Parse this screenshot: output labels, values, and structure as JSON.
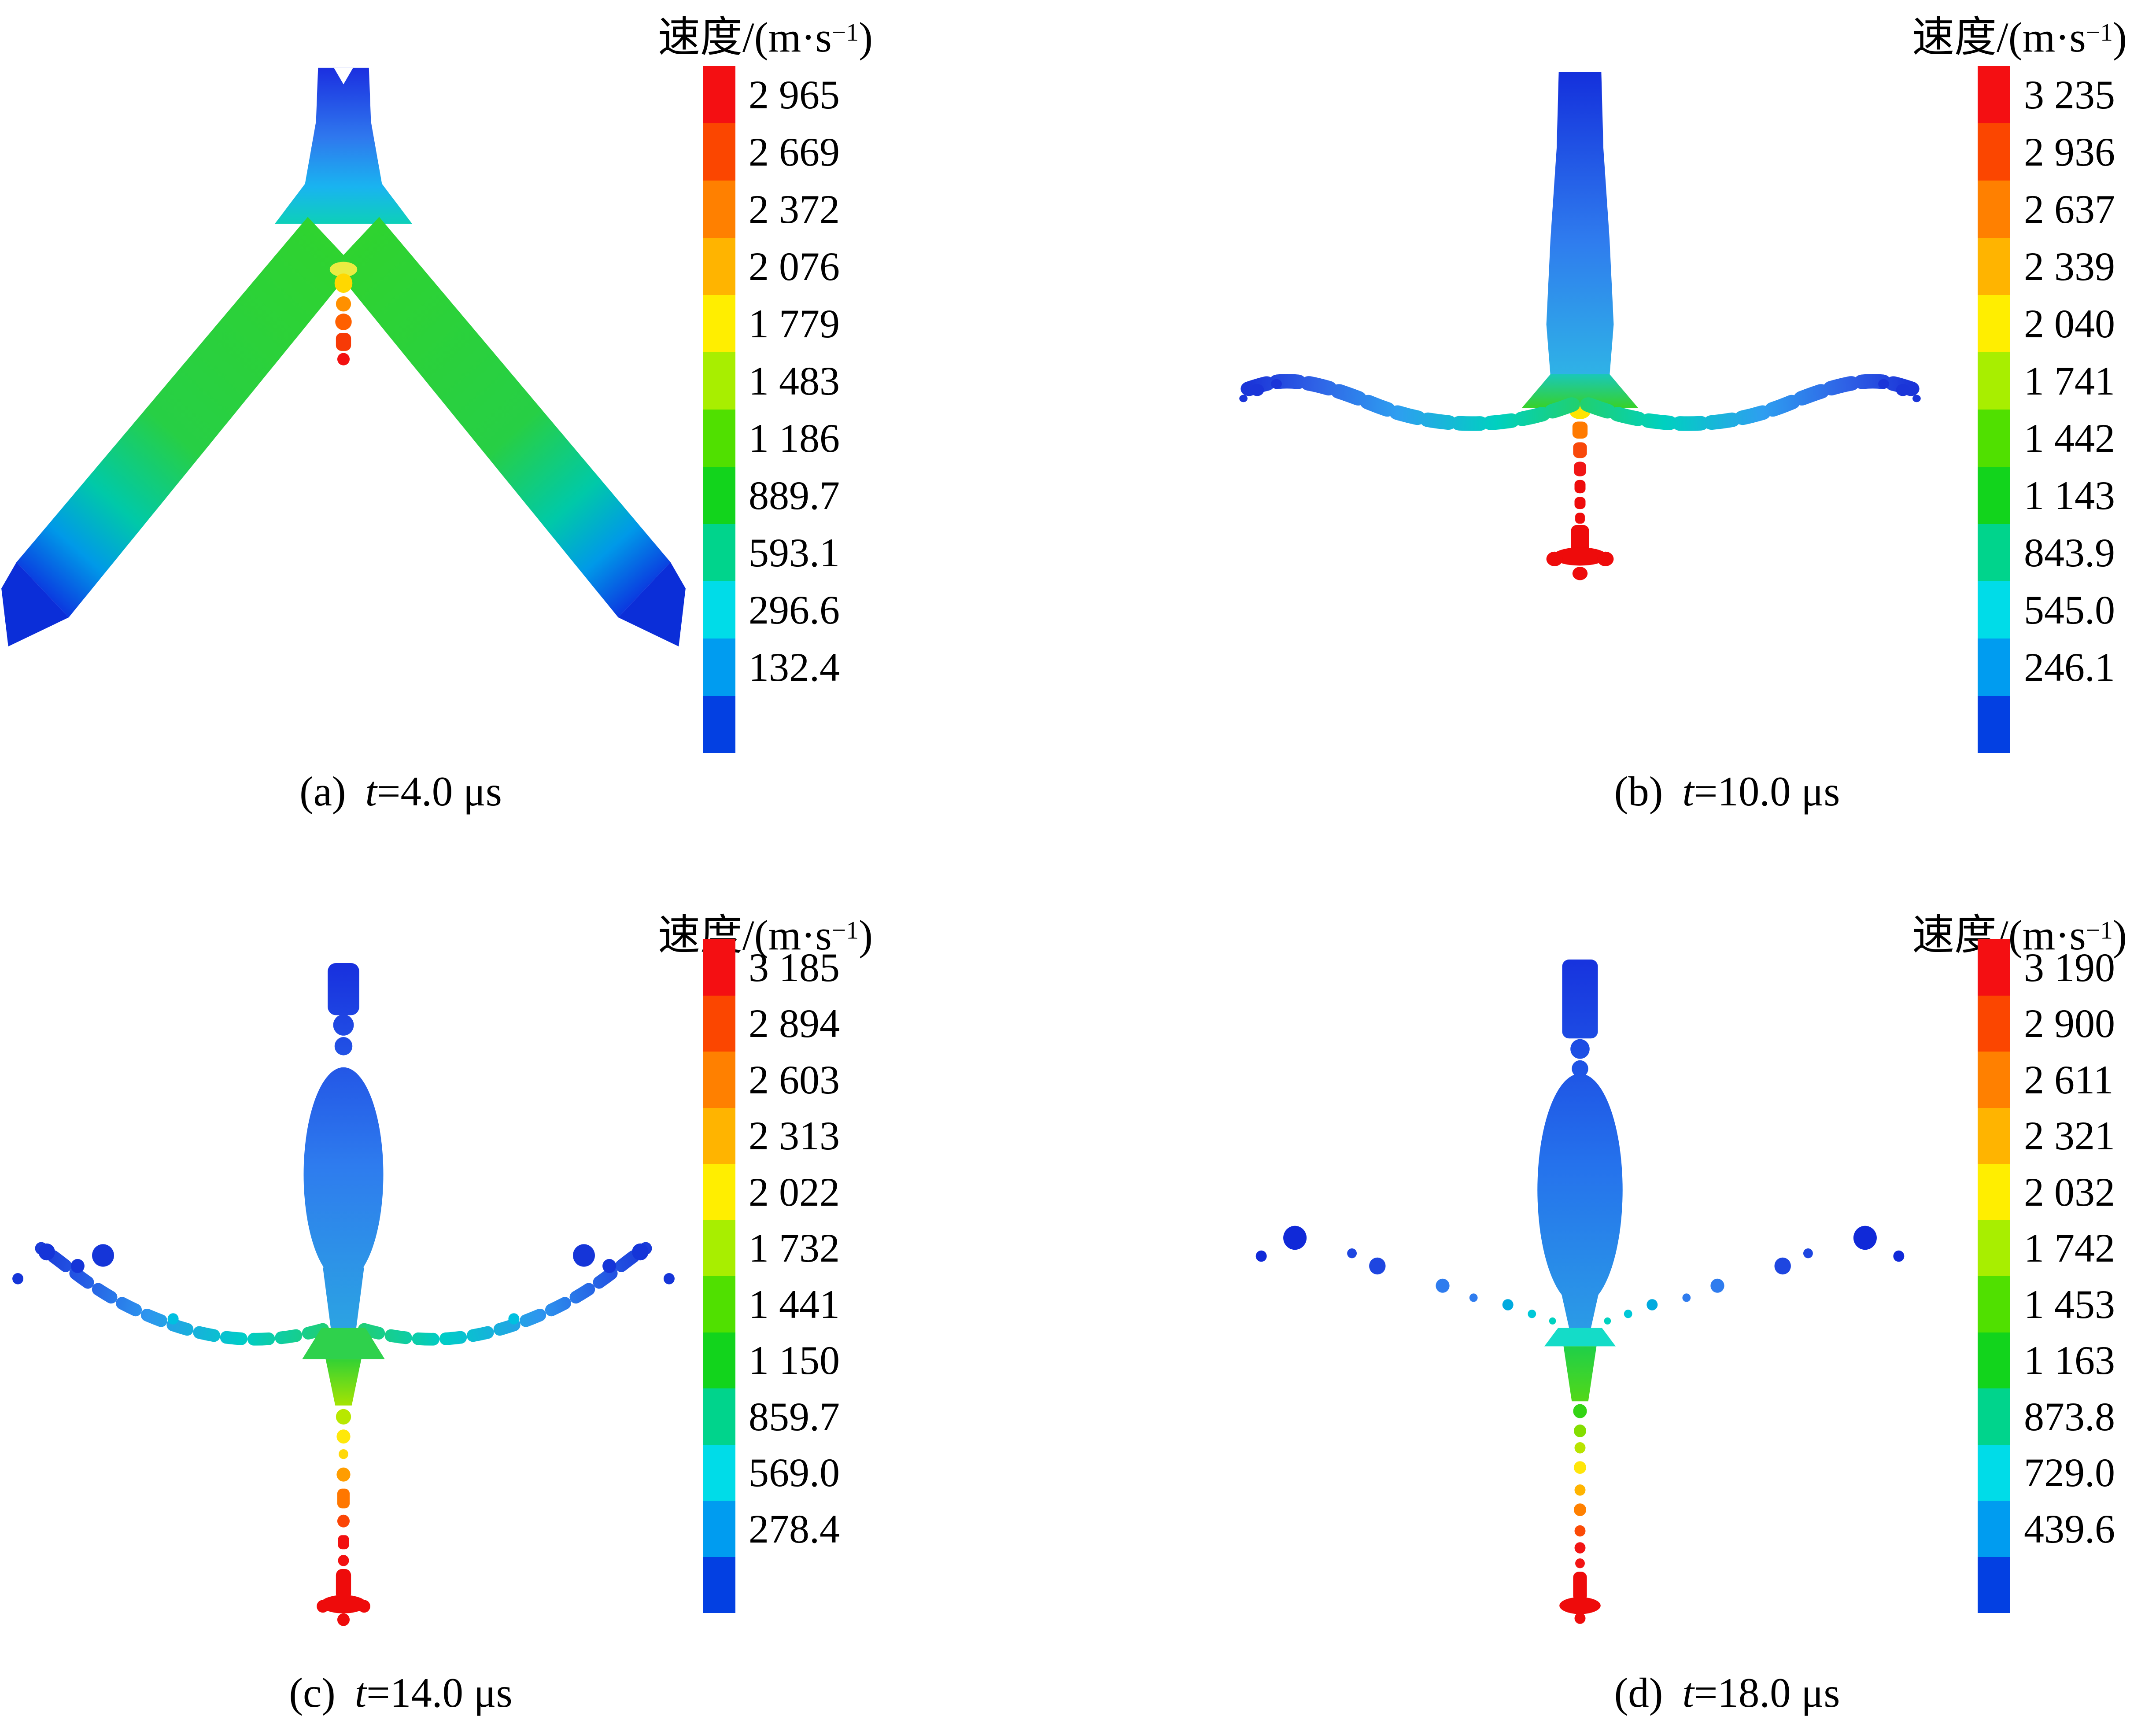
{
  "figure": {
    "unit_title": {
      "prefix": "速度/(m·s",
      "sup": "−1",
      "suffix": ")"
    },
    "colorbar_colors": [
      "#f40f12",
      "#fb4600",
      "#ff8000",
      "#ffb400",
      "#ffee00",
      "#a8ee00",
      "#50e000",
      "#12d41c",
      "#00d48c",
      "#00dce8",
      "#009cf0",
      "#0340e2"
    ],
    "panels": [
      {
        "id": "a",
        "caption": {
          "index": "(a)",
          "var": "t",
          "rest": "=4.0 μs"
        },
        "colorbar_labels": [
          "2 965",
          "2 669",
          "2 372",
          "2 076",
          "1 779",
          "1 483",
          "1 186",
          "889.7",
          "593.1",
          "296.6",
          "132.4"
        ]
      },
      {
        "id": "b",
        "caption": {
          "index": "(b)",
          "var": "t",
          "rest": "=10.0 μs"
        },
        "colorbar_labels": [
          "3 235",
          "2 936",
          "2 637",
          "2 339",
          "2 040",
          "1 741",
          "1 442",
          "1 143",
          "843.9",
          "545.0",
          "246.1"
        ]
      },
      {
        "id": "c",
        "caption": {
          "index": "(c)",
          "var": "t",
          "rest": "=14.0 μs"
        },
        "colorbar_labels": [
          "3 185",
          "2 894",
          "2 603",
          "2 313",
          "2 022",
          "1 732",
          "1 441",
          "1 150",
          "859.7",
          "569.0",
          "278.4"
        ]
      },
      {
        "id": "d",
        "caption": {
          "index": "(d)",
          "var": "t",
          "rest": "=18.0 μs"
        },
        "colorbar_labels": [
          "3 190",
          "2 900",
          "2 611",
          "2 321",
          "2 032",
          "1 742",
          "1 453",
          "1 163",
          "873.8",
          "729.0",
          "439.6"
        ]
      }
    ]
  },
  "chart_data": [
    {
      "type": "scatter",
      "title": "速度/(m·s−1)",
      "caption": "(a) t=4.0 μs",
      "time_us": 4.0,
      "legend_position": "right",
      "colorbar": {
        "label": "速度/(m·s−1)",
        "orientation": "vertical",
        "n_color_bands": 12,
        "tick_labels": [
          "2 965",
          "2 669",
          "2 372",
          "2 076",
          "1 779",
          "1 483",
          "1 186",
          "889.7",
          "593.1",
          "296.6",
          "132.4"
        ],
        "tick_values": [
          2965,
          2669,
          2372,
          2076,
          1779,
          1483,
          1186,
          889.7,
          593.1,
          296.6,
          132.4
        ],
        "colors_top_to_bottom": [
          "#f40f12",
          "#fb4600",
          "#ff8000",
          "#ffb400",
          "#ffee00",
          "#a8ee00",
          "#50e000",
          "#12d41c",
          "#00d48c",
          "#00dce8",
          "#009cf0",
          "#0340e2"
        ]
      },
      "content_description": "SPH particle velocity field: inverted-V collapsing liner; blue vertical chimney at apex, green slanted arms ending in dark-blue wedge tips at lower corners, small orange-red jet below apex center"
    },
    {
      "type": "scatter",
      "title": "速度/(m·s−1)",
      "caption": "(b) t=10.0 μs",
      "time_us": 10.0,
      "legend_position": "right",
      "colorbar": {
        "label": "速度/(m·s−1)",
        "orientation": "vertical",
        "n_color_bands": 12,
        "tick_labels": [
          "3 235",
          "2 936",
          "2 637",
          "2 339",
          "2 040",
          "1 741",
          "1 442",
          "1 143",
          "843.9",
          "545.0",
          "246.1"
        ],
        "tick_values": [
          3235,
          2936,
          2637,
          2339,
          2040,
          1741,
          1442,
          1143,
          843.9,
          545.0,
          246.1
        ],
        "colors_top_to_bottom": [
          "#f40f12",
          "#fb4600",
          "#ff8000",
          "#ffb400",
          "#ffee00",
          "#a8ee00",
          "#50e000",
          "#12d41c",
          "#00d48c",
          "#00dce8",
          "#009cf0",
          "#0340e2"
        ]
      },
      "content_description": "Sword-shaped field: blue slug column on top, horizontal fragmented debris wings (cyan center to blue tips), green-yellow junction, red jet descending with red tip"
    },
    {
      "type": "scatter",
      "title": "速度/(m·s−1)",
      "caption": "(c) t=14.0 μs",
      "time_us": 14.0,
      "legend_position": "right",
      "colorbar": {
        "label": "速度/(m·s−1)",
        "orientation": "vertical",
        "n_color_bands": 12,
        "tick_labels": [
          "3 185",
          "2 894",
          "2 603",
          "2 313",
          "2 022",
          "1 732",
          "1 441",
          "1 150",
          "859.7",
          "569.0",
          "278.4"
        ],
        "tick_values": [
          3185,
          2894,
          2603,
          2313,
          2022,
          1732,
          1441,
          1150,
          859.7,
          569.0,
          278.4
        ],
        "colors_top_to_bottom": [
          "#f40f12",
          "#fb4600",
          "#ff8000",
          "#ffb400",
          "#ffee00",
          "#a8ee00",
          "#50e000",
          "#12d41c",
          "#00d48c",
          "#00dce8",
          "#009cf0",
          "#0340e2"
        ]
      },
      "content_description": "Blue bulged slug column, upward-curving fragmented debris wings with blue end clusters, green neck below junction breaking into yellow, orange and red fragments with red tip"
    },
    {
      "type": "scatter",
      "title": "速度/(m·s−1)",
      "caption": "(d) t=18.0 μs",
      "time_us": 18.0,
      "legend_position": "right",
      "colorbar": {
        "label": "速度/(m·s−1)",
        "orientation": "vertical",
        "n_color_bands": 12,
        "tick_labels": [
          "3 190",
          "2 900",
          "2 611",
          "2 321",
          "2 032",
          "1 742",
          "1 453",
          "1 163",
          "873.8",
          "729.0",
          "439.6"
        ],
        "tick_values": [
          3190,
          2900,
          2611,
          2321,
          2032,
          1742,
          1453,
          1163,
          873.8,
          729.0,
          439.6
        ],
        "colors_top_to_bottom": [
          "#f40f12",
          "#fb4600",
          "#ff8000",
          "#ffb400",
          "#ffee00",
          "#a8ee00",
          "#50e000",
          "#12d41c",
          "#00d48c",
          "#00dce8",
          "#009cf0",
          "#0340e2"
        ]
      },
      "content_description": "Large blue bulged slug column, sparse isolated blue debris blobs on both sides, green-to-yellow-to-orange-to-red chain of jet fragments below with red tip"
    }
  ]
}
